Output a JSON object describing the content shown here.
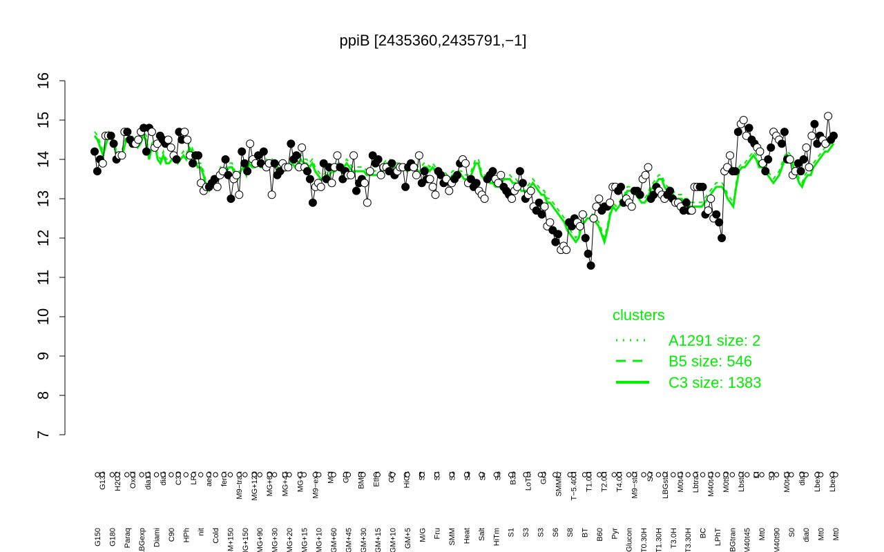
{
  "chart_data": {
    "type": "line",
    "title": "ppiB [2435360,2435791,−1]",
    "xlabel": "",
    "ylabel": "",
    "ylim": [
      7,
      16
    ],
    "yticks": [
      7,
      8,
      9,
      10,
      11,
      12,
      13,
      14,
      15,
      16
    ],
    "grid": false,
    "colors": {
      "points": "#000000",
      "clusters": "#00ee00"
    },
    "tick_labels_top": [
      "G135",
      "H2O2",
      "Oxctl",
      "dia15",
      "dia5",
      "C30",
      "LPh",
      "aero",
      "ferm",
      "M9−tran",
      "MG+120",
      "MG+60",
      "MG+45",
      "MG+5",
      "M9−exp",
      "Mal",
      "Glu",
      "BMM",
      "Etha",
      "Gly",
      "HiOs",
      "S2",
      "S4",
      "S5",
      "S6",
      "S7",
      "S6",
      "B36",
      "LoTm",
      "G/S",
      "SMMPr",
      "T−5.40H",
      "T1.0H",
      "T2.0H",
      "T4.0H",
      "M9−stat",
      "Sw",
      "LBGstat",
      "M0t45",
      "Lbtran",
      "M40t45",
      "M0t90",
      "Lbstat",
      "BI",
      "S0",
      "M0t45",
      "dia0",
      "Lbexp",
      "Lbexp"
    ],
    "tick_labels_bottom": [
      "G150",
      "G180",
      "Paraq",
      "LBGexp",
      "Diami",
      "C90",
      "HPh",
      "nit",
      "Cold",
      "GM+150",
      "MG+150",
      "MG+90",
      "MG+30",
      "MG+20",
      "MG+15",
      "MG+10",
      "GM+60",
      "GM+45",
      "GM+30",
      "GM+15",
      "GM+10",
      "GM+5",
      "M/G",
      "Fru",
      "SMM",
      "Heat",
      "Salt",
      "HiTm",
      "S1",
      "S3",
      "S3",
      "S6",
      "S8",
      "BT",
      "B60",
      "Pyr",
      "Glucon",
      "T0.30H",
      "T1.30H",
      "T3.0H",
      "T3.30H",
      "BC",
      "LPhT",
      "LBGtran",
      "M40t45",
      "Mt0",
      "M40t90",
      "S0",
      "dia0",
      "Mt0",
      "Mt0"
    ],
    "legend": {
      "title": "clusters",
      "placement": "right",
      "entries": [
        {
          "label": "A1291 size: 2",
          "style": "dotted"
        },
        {
          "label": "B5 size: 546",
          "style": "dashed"
        },
        {
          "label": "C3 size: 1383",
          "style": "solid"
        }
      ]
    },
    "series": [
      {
        "values": [
          14.2,
          13.7,
          14.0,
          13.9,
          14.6,
          14.6,
          14.6,
          14.4,
          14.0,
          14.1,
          14.1,
          14.7,
          14.7,
          14.5,
          14.4,
          14.4,
          14.5,
          14.7,
          14.8,
          14.2,
          14.8,
          14.7,
          14.3,
          14.4,
          14.6,
          14.5,
          14.4,
          14.5,
          14.3,
          14.1,
          14.0,
          14.7,
          14.5,
          14.7,
          14.5,
          14.1,
          13.9,
          14.1,
          14.1,
          13.4,
          13.2,
          13.3,
          13.3,
          13.4,
          13.5,
          13.3,
          13.6,
          13.7,
          14.0,
          13.6,
          13.0,
          13.5,
          13.6,
          13.1,
          14.2,
          13.9,
          13.7,
          14.4,
          14.0,
          13.9,
          14.1,
          13.9,
          14.2,
          13.8,
          13.9,
          13.1,
          13.9,
          13.6,
          13.7,
          13.9,
          13.8,
          13.8,
          14.4,
          14.0,
          14.1,
          13.8,
          14.3,
          13.8,
          13.7,
          13.5,
          12.9,
          13.3,
          13.4,
          13.3,
          13.9,
          13.5,
          13.8,
          13.4,
          13.8,
          14.1,
          13.8,
          13.5,
          13.7,
          13.6,
          13.6,
          14.1,
          13.2,
          13.4,
          13.5,
          13.4,
          12.9,
          13.7,
          14.1,
          13.9,
          14.0,
          13.6,
          13.8,
          13.8,
          13.7,
          13.9,
          13.6,
          13.7,
          13.8,
          13.8,
          13.3,
          13.8,
          13.9,
          13.8,
          13.6,
          14.1,
          13.4,
          13.7,
          13.5,
          13.5,
          13.3,
          13.1,
          13.7,
          13.6,
          13.4,
          13.5,
          13.2,
          13.4,
          13.5,
          13.6,
          13.9,
          14.0,
          13.9,
          13.4,
          13.5,
          13.3,
          13.4,
          13.2,
          13.1,
          13.0,
          13.5,
          13.6,
          13.7,
          13.5,
          13.4,
          13.6,
          13.3,
          13.2,
          13.1,
          13.0,
          13.2,
          13.3,
          13.7,
          13.4,
          13.0,
          13.1,
          13.2,
          12.8,
          12.7,
          12.9,
          12.6,
          12.8,
          12.3,
          12.4,
          12.2,
          11.9,
          12.1,
          11.7,
          11.8,
          11.7,
          12.4,
          12.3,
          12.5,
          12.4,
          12.3,
          12.6,
          12.0,
          11.6,
          11.3,
          12.5,
          12.8,
          13.0,
          12.7,
          12.8,
          12.8,
          12.9,
          13.3,
          13.3,
          13.2,
          13.3,
          12.9,
          13.0,
          12.9,
          12.8,
          13.2,
          13.2,
          13.1,
          13.5,
          13.6,
          13.8,
          13.0,
          13.1,
          13.3,
          13.2,
          13.1,
          13.0,
          13.1,
          13.2,
          13.0,
          12.9,
          12.9,
          12.8,
          12.7,
          12.9,
          12.7,
          12.7,
          13.3,
          13.3,
          13.3,
          13.3,
          12.6,
          12.7,
          13.0,
          12.5,
          12.6,
          12.4,
          12.0,
          13.7,
          13.8,
          14.1,
          13.7,
          13.7,
          14.7,
          14.9,
          15.0,
          14.6,
          14.8,
          14.5,
          14.4,
          14.3,
          14.2,
          13.9,
          13.7,
          14.0,
          14.3,
          14.7,
          14.6,
          14.5,
          14.4,
          14.7,
          14.0,
          14.0,
          13.6,
          13.7,
          13.9,
          13.7,
          14.0,
          14.3,
          13.8,
          14.6,
          14.9,
          14.4,
          14.6,
          14.5,
          14.4,
          15.1,
          14.5,
          14.6
        ]
      },
      {
        "name": "C3 size: 1383",
        "values": [
          14.6,
          14.5,
          14.3,
          14.1,
          14.4,
          14.6,
          14.5,
          14.3,
          14.0,
          14.1,
          14.2,
          14.5,
          14.6,
          14.5,
          14.4,
          14.3,
          14.4,
          14.6,
          14.5,
          14.0,
          14.3,
          14.4,
          14.0,
          13.9,
          14.1,
          13.9,
          13.9,
          14.0,
          14.0,
          13.9,
          14.0,
          14.1,
          14.0,
          14.3,
          14.2,
          14.0,
          13.8,
          13.8,
          13.6,
          13.3,
          13.2,
          13.3,
          13.4,
          13.5,
          13.7,
          13.6,
          13.7,
          13.8,
          13.8,
          13.6,
          13.5,
          13.7,
          13.8,
          13.6,
          13.9,
          13.8,
          13.8,
          13.9,
          13.8,
          13.8,
          13.9,
          13.8,
          13.9,
          13.8,
          13.8,
          13.7,
          13.7,
          13.8,
          13.8,
          13.9,
          13.8,
          13.9,
          14.0,
          13.9,
          13.9,
          13.8,
          13.9,
          13.7,
          13.6,
          13.5,
          13.5,
          13.6,
          13.6,
          13.7,
          13.7,
          13.8,
          13.7,
          13.8,
          13.9,
          13.8,
          13.7,
          13.7,
          13.7,
          13.7,
          13.7,
          13.6,
          13.6,
          13.6,
          13.6,
          13.6,
          13.6,
          13.8,
          13.9,
          13.9,
          13.8,
          13.8,
          13.8,
          13.8,
          13.8,
          13.7,
          13.8,
          13.8,
          13.8,
          13.7,
          13.7,
          13.8,
          13.8,
          13.7,
          13.8,
          13.7,
          13.6,
          13.6,
          13.6,
          13.5,
          13.5,
          13.6,
          13.6,
          13.6,
          13.6,
          13.5,
          13.5,
          13.5,
          13.7,
          13.9,
          13.9,
          13.6,
          13.5,
          13.5,
          13.4,
          13.4,
          13.3,
          13.3,
          13.4,
          13.5,
          13.5,
          13.5,
          13.4,
          13.4,
          13.3,
          13.2,
          13.2,
          13.2,
          13.3,
          13.4,
          13.3,
          13.2,
          13.1,
          13.1,
          12.9,
          12.9,
          12.8,
          12.7,
          12.6,
          12.5,
          12.4,
          12.2,
          12.1,
          12.0,
          11.9,
          12.0,
          12.3,
          12.4,
          12.5,
          12.5,
          12.5,
          12.4,
          12.3,
          12.1,
          11.9,
          12.2,
          12.6,
          12.8,
          12.7,
          12.8,
          12.9,
          13.0,
          13.2,
          13.2,
          13.2,
          13.1,
          13.0,
          12.9,
          12.9,
          13.0,
          13.2,
          13.3,
          13.4,
          13.5,
          13.5,
          13.3,
          13.2,
          13.2,
          13.1,
          13.0,
          13.0,
          13.0,
          12.9,
          12.9,
          12.8,
          12.8,
          12.8,
          12.8,
          12.8,
          12.9,
          13.0,
          13.1,
          13.2,
          13.3,
          13.3,
          13.3,
          13.2,
          13.0,
          12.9,
          12.8,
          13.3,
          13.7,
          13.8,
          13.8,
          13.9,
          14.0,
          14.1,
          14.0,
          13.8,
          13.8,
          13.7,
          13.6,
          13.5,
          13.4,
          13.5,
          13.6,
          13.8,
          14.0,
          14.1,
          14.0,
          13.8,
          13.6,
          13.4,
          13.3,
          13.5,
          13.6,
          13.6,
          13.8,
          13.9,
          14.0,
          14.1,
          14.2,
          14.2,
          14.3,
          14.4
        ]
      }
    ]
  }
}
